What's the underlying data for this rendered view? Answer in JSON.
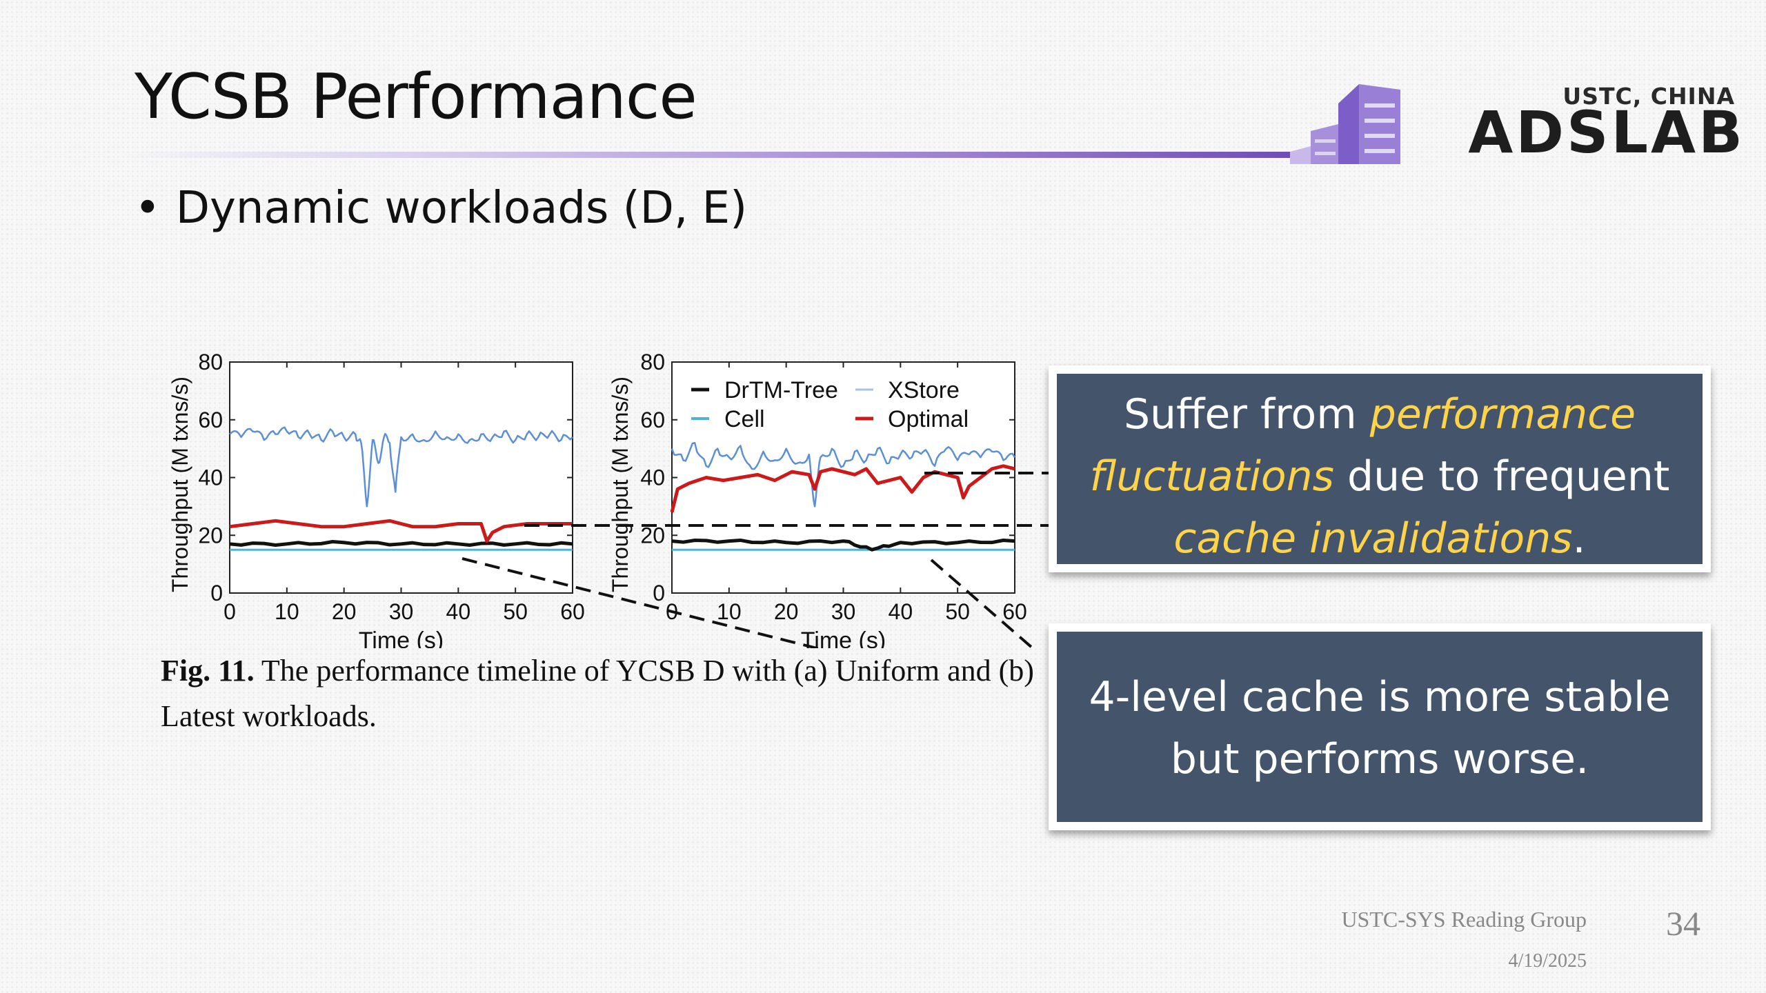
{
  "slide": {
    "title": "YCSB Performance",
    "bullet": "Dynamic workloads (D, E)",
    "logo": {
      "subtitle": "USTC, CHINA",
      "name": "ADSLAB"
    },
    "caption": {
      "label": "Fig. 11.",
      "text": "The performance timeline of YCSB D with (a) Uniform and (b) Latest workloads."
    },
    "callout1": {
      "parts": [
        "Suffer from ",
        "performance fluctuations",
        " due to frequent ",
        "cache invalidations",
        "."
      ]
    },
    "callout2": {
      "text": "4-level cache is more stable but performs worse."
    },
    "footer": {
      "group": "USTC-SYS Reading Group",
      "date": "4/19/2025",
      "page": "34"
    },
    "colors": {
      "title_rule": "#7a5ec4",
      "callout_bg": "#44546a",
      "highlight": "#ffd34a",
      "DrTM-Tree": "#111111",
      "XStore": "#5b8fd6",
      "Cell": "#4fb3d6",
      "Optimal": "#cc1a1a"
    }
  },
  "chart_data": [
    {
      "type": "line",
      "panel": "a",
      "xlabel": "Time (s)",
      "ylabel": "Throughput (M txns/s)",
      "xlim": [
        0,
        60
      ],
      "ylim": [
        0,
        80
      ],
      "xticks": [
        0,
        10,
        20,
        30,
        40,
        50,
        60
      ],
      "yticks": [
        0,
        20,
        40,
        60,
        80
      ],
      "series": [
        {
          "name": "XStore",
          "x": [
            0,
            2,
            4,
            6,
            8,
            10,
            12,
            14,
            16,
            18,
            20,
            22,
            23,
            24,
            25,
            26,
            27,
            28,
            29,
            30,
            32,
            34,
            36,
            38,
            40,
            42,
            44,
            46,
            48,
            50,
            52,
            54,
            56,
            58,
            60
          ],
          "y": [
            55,
            54,
            56,
            53,
            55,
            56,
            54,
            55,
            53,
            56,
            54,
            55,
            52,
            30,
            53,
            45,
            54,
            52,
            35,
            54,
            55,
            53,
            56,
            54,
            55,
            53,
            55,
            54,
            56,
            53,
            55,
            54,
            55,
            53,
            54
          ]
        },
        {
          "name": "Optimal",
          "x": [
            0,
            4,
            8,
            12,
            16,
            20,
            24,
            28,
            30,
            32,
            36,
            40,
            44,
            45,
            46,
            48,
            52,
            56,
            60
          ],
          "y": [
            23,
            24,
            25,
            24,
            23,
            23,
            24,
            25,
            24,
            23,
            23,
            24,
            24,
            18,
            21,
            23,
            24,
            24,
            24
          ]
        },
        {
          "name": "DrTM-Tree",
          "x": [
            0,
            10,
            20,
            30,
            40,
            50,
            60
          ],
          "y": [
            17,
            17,
            17.5,
            17,
            17,
            17,
            17
          ]
        },
        {
          "name": "Cell",
          "x": [
            0,
            60
          ],
          "y": [
            15,
            15
          ]
        }
      ]
    },
    {
      "type": "line",
      "panel": "b",
      "xlabel": "Time (s)",
      "ylabel": "Throughput (M txns/s)",
      "xlim": [
        0,
        60
      ],
      "ylim": [
        0,
        80
      ],
      "xticks": [
        0,
        10,
        20,
        30,
        40,
        50,
        60
      ],
      "yticks": [
        0,
        20,
        40,
        60,
        80
      ],
      "legend": "top",
      "series": [
        {
          "name": "XStore",
          "x": [
            0,
            2,
            4,
            6,
            8,
            10,
            12,
            14,
            16,
            18,
            20,
            22,
            24,
            25,
            26,
            28,
            30,
            32,
            34,
            36,
            38,
            40,
            42,
            44,
            46,
            48,
            50,
            52,
            54,
            56,
            58,
            60
          ],
          "y": [
            50,
            46,
            52,
            44,
            50,
            47,
            51,
            43,
            49,
            46,
            50,
            45,
            48,
            30,
            47,
            50,
            44,
            49,
            46,
            50,
            45,
            48,
            47,
            49,
            44,
            50,
            46,
            48,
            47,
            49,
            46,
            47
          ]
        },
        {
          "name": "Optimal",
          "x": [
            0,
            1,
            3,
            6,
            9,
            12,
            15,
            18,
            21,
            24,
            25,
            26,
            28,
            32,
            34,
            36,
            40,
            42,
            44,
            46,
            48,
            50,
            51,
            52,
            54,
            56,
            58,
            60
          ],
          "y": [
            28,
            36,
            38,
            40,
            39,
            40,
            41,
            39,
            42,
            41,
            36,
            42,
            43,
            41,
            43,
            38,
            40,
            35,
            40,
            42,
            41,
            40,
            33,
            37,
            40,
            43,
            44,
            43
          ]
        },
        {
          "name": "DrTM-Tree",
          "x": [
            0,
            10,
            20,
            30,
            35,
            40,
            50,
            60
          ],
          "y": [
            18,
            18,
            17.5,
            18,
            15,
            17.5,
            17.5,
            18
          ]
        },
        {
          "name": "Cell",
          "x": [
            0,
            60
          ],
          "y": [
            15,
            15
          ]
        }
      ]
    }
  ]
}
